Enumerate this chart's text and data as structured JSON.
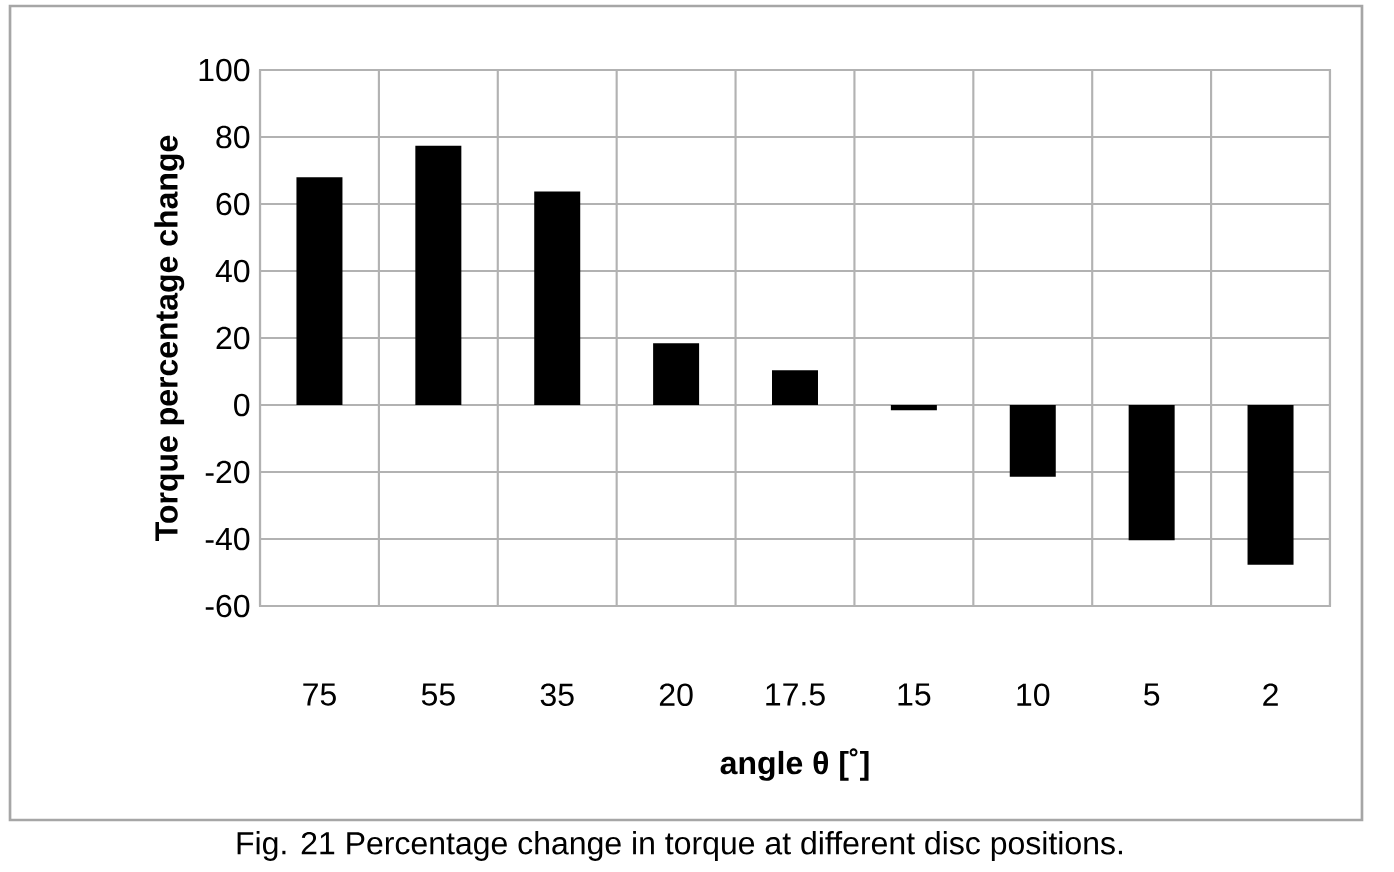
{
  "chart_data": {
    "type": "bar",
    "xlabel": "angle θ [˚]",
    "ylabel": "Torque percentage change",
    "categories": [
      "75",
      "55",
      "35",
      "20",
      "17.5",
      "15",
      "10",
      "5",
      "2"
    ],
    "values": [
      68,
      77.4,
      63.7,
      18.4,
      10.4,
      -1.6,
      -21.4,
      -40.4,
      -47.7
    ],
    "color": "#000000",
    "ylim": [
      -60,
      100
    ],
    "yticks": [
      -60,
      -40,
      -20,
      0,
      20,
      40,
      60,
      80,
      100
    ],
    "grid": true,
    "annotations": [
      "Fig. 21 Percentage change in torque at different disc positions."
    ]
  }
}
